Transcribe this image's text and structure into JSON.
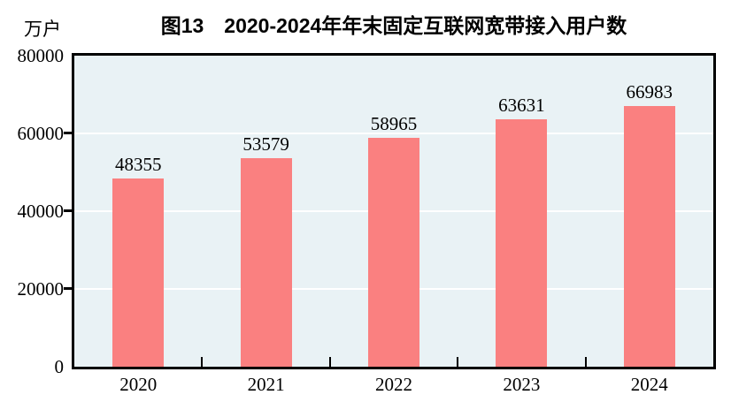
{
  "figure": {
    "unit_label": "万户"
  },
  "chart_data": {
    "type": "bar",
    "title": "图13　2020-2024年年末固定互联网宽带接入用户数",
    "unit_label": "万户",
    "categories": [
      "2020",
      "2021",
      "2022",
      "2023",
      "2024"
    ],
    "values": [
      48355,
      53579,
      58965,
      63631,
      66983
    ],
    "value_labels": [
      "48355",
      "53579",
      "58965",
      "63631",
      "66983"
    ],
    "xlabel": "",
    "ylabel": "万户",
    "ylim": [
      0,
      80000
    ],
    "y_ticks": [
      0,
      20000,
      40000,
      60000,
      80000
    ],
    "grid": "horizontal",
    "legend_position": "none",
    "bar_color": "#fa8080",
    "plot_background": "#e9f2f5",
    "gridline_color": "#ffffff",
    "axis_color": "#000000"
  }
}
